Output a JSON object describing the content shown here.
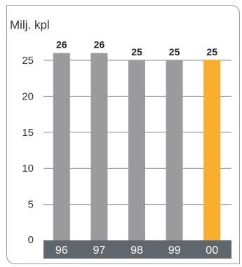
{
  "chart_data": {
    "type": "bar",
    "ylabel": "Milj. kpl",
    "categories": [
      "96",
      "97",
      "98",
      "99",
      "00"
    ],
    "values": [
      26,
      26,
      25,
      25,
      25
    ],
    "value_labels": [
      "26",
      "26",
      "25",
      "25",
      "25"
    ],
    "yticks": [
      0,
      5,
      10,
      15,
      20,
      25
    ],
    "ylim": [
      0,
      26
    ],
    "grid": true,
    "colors": {
      "bar": "#9b9b9e",
      "highlight_bar": "#f9ae2f",
      "axis_band": "#5f676d",
      "grid": "#8a8a8a"
    },
    "highlight_index": 4
  }
}
